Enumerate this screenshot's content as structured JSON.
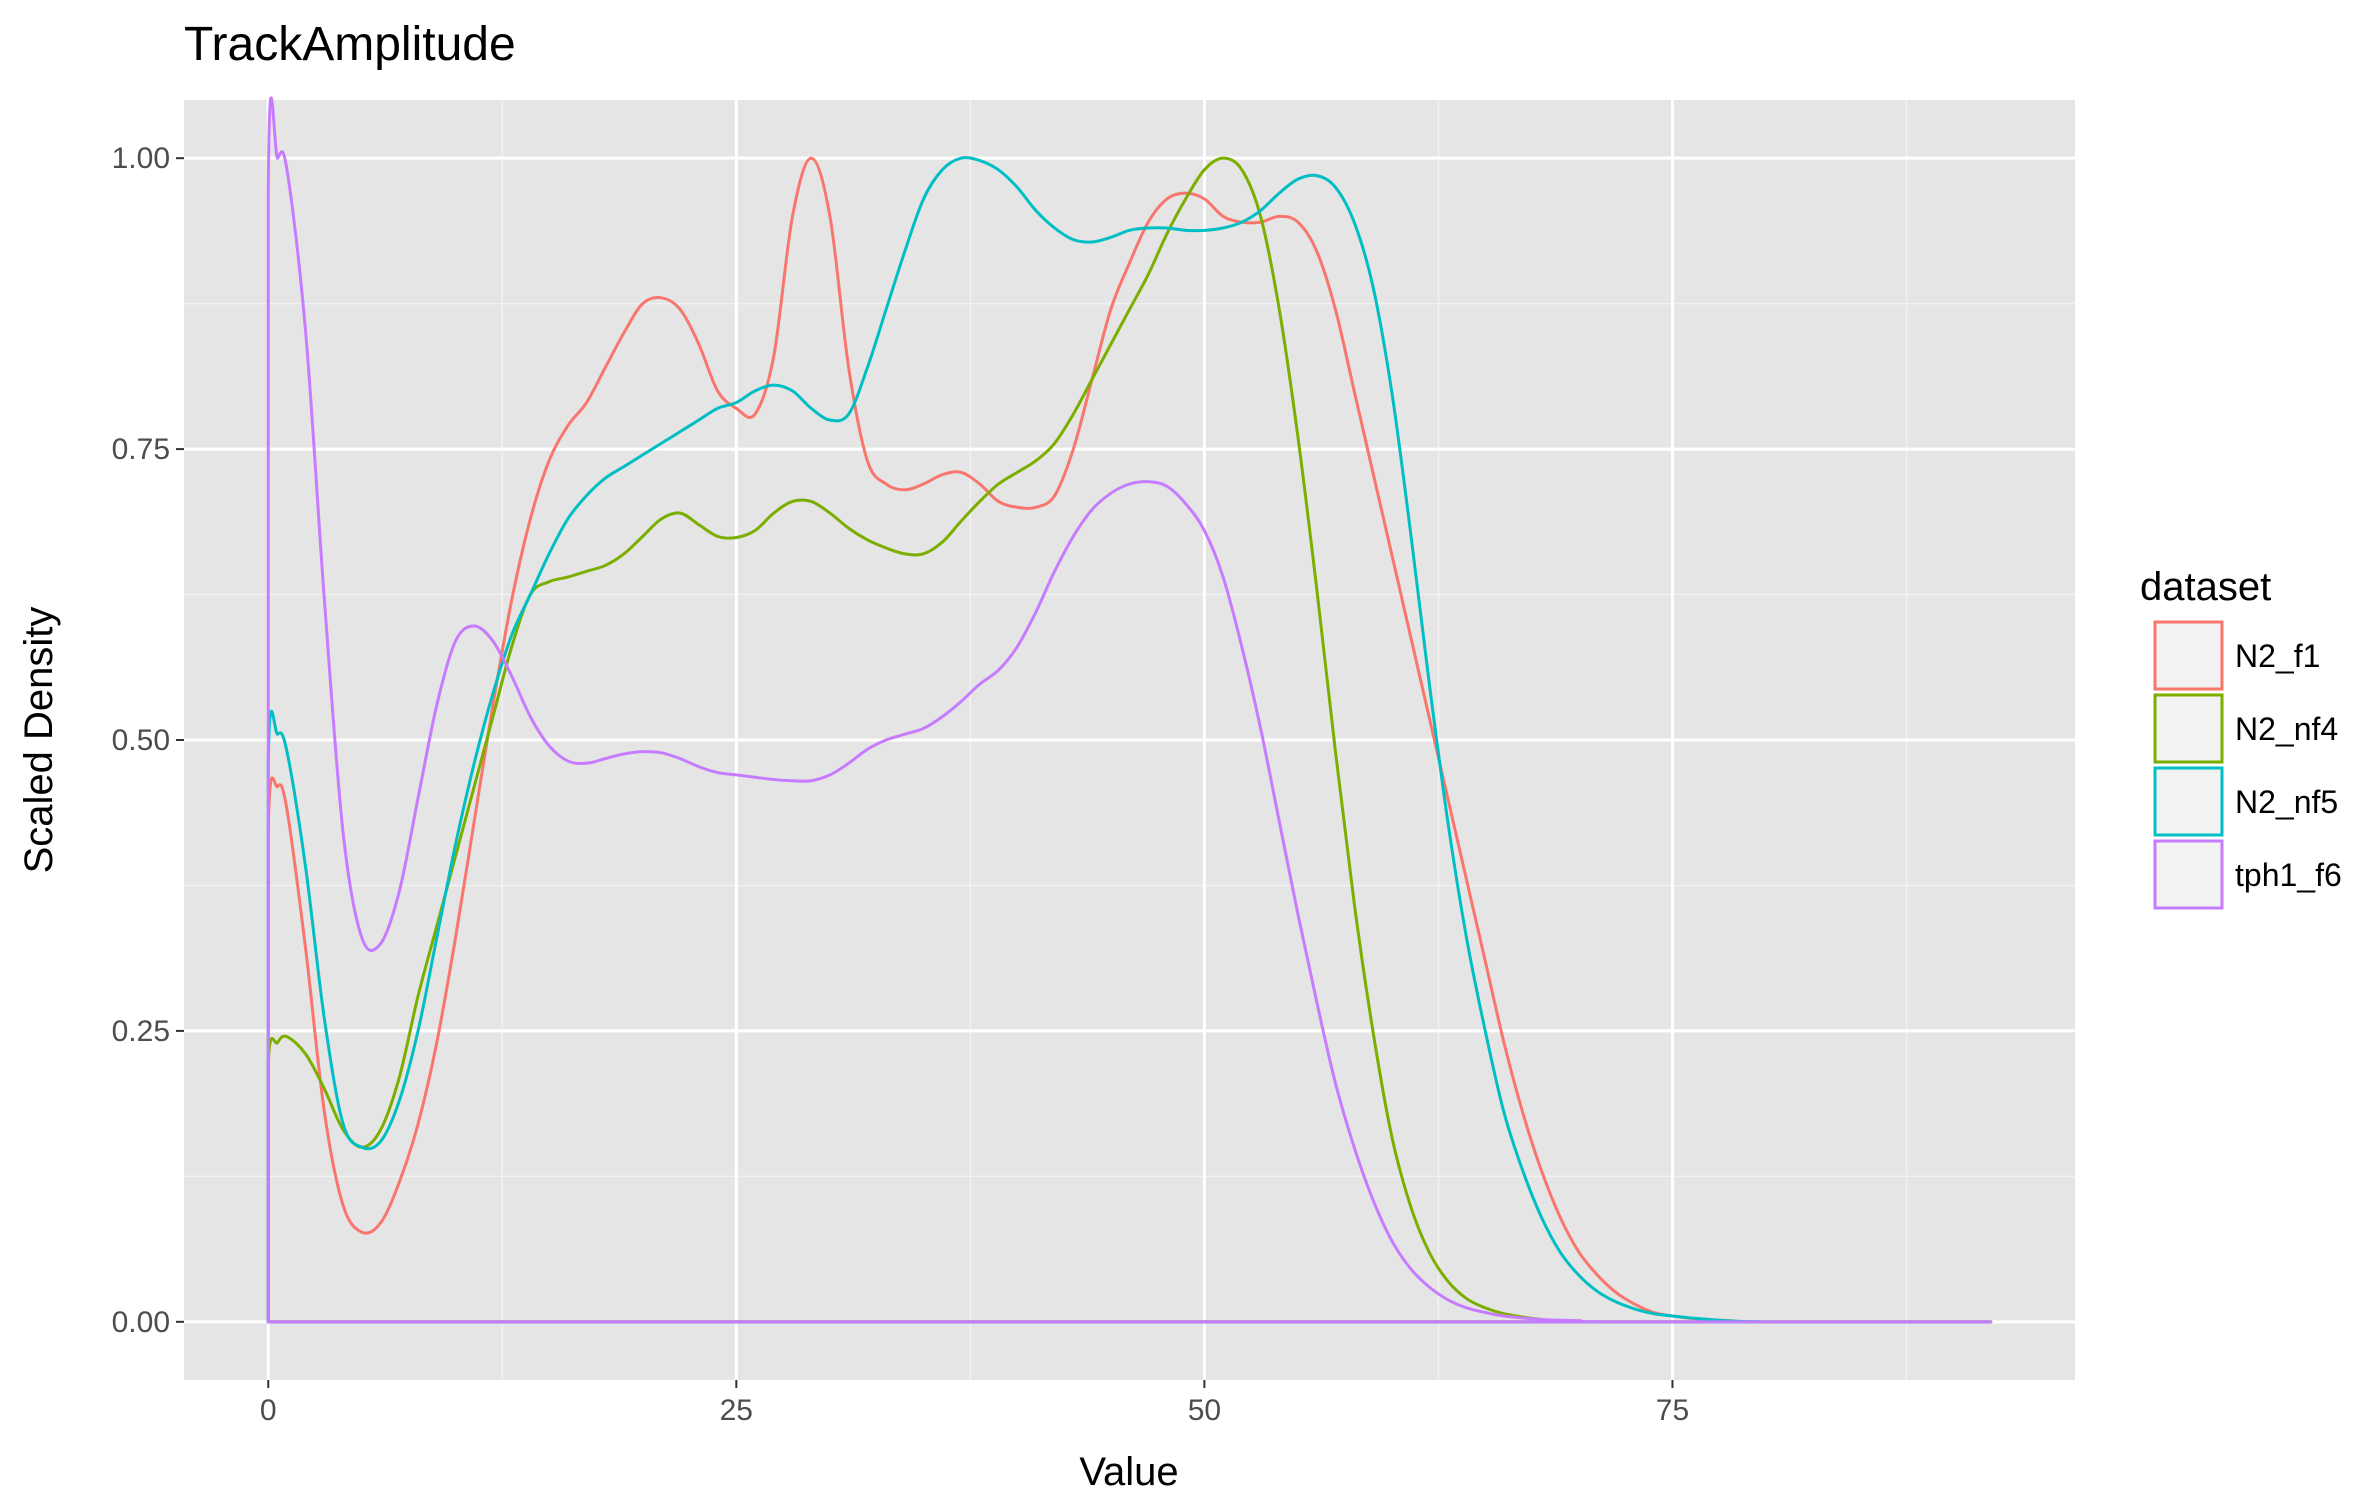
{
  "chart_data": {
    "type": "line",
    "title": "TrackAmplitude",
    "xlabel": "Value",
    "ylabel": "Scaled Density",
    "xlim": [
      -4.5,
      96.5
    ],
    "ylim": [
      -0.05,
      1.05
    ],
    "x_ticks": [
      0,
      25,
      50,
      75
    ],
    "x_tick_labels": [
      "0",
      "25",
      "50",
      "75"
    ],
    "y_ticks": [
      0,
      0.25,
      0.5,
      0.75,
      1.0
    ],
    "y_tick_labels": [
      "0.00",
      "0.25",
      "0.50",
      "0.75",
      "1.00"
    ],
    "grid": true,
    "legend": {
      "title": "dataset",
      "position": "right"
    },
    "series": [
      {
        "name": "N2_f1",
        "color": "#F8766D",
        "points": [
          [
            0,
            0
          ],
          [
            0,
            0.42
          ],
          [
            0.5,
            0.46
          ],
          [
            1,
            0.44
          ],
          [
            2,
            0.32
          ],
          [
            3,
            0.18
          ],
          [
            4,
            0.1
          ],
          [
            5,
            0.077
          ],
          [
            6,
            0.085
          ],
          [
            7,
            0.12
          ],
          [
            8,
            0.17
          ],
          [
            9,
            0.24
          ],
          [
            10,
            0.33
          ],
          [
            11,
            0.43
          ],
          [
            12,
            0.53
          ],
          [
            13,
            0.62
          ],
          [
            14,
            0.69
          ],
          [
            15,
            0.74
          ],
          [
            16,
            0.77
          ],
          [
            17,
            0.79
          ],
          [
            18,
            0.82
          ],
          [
            19,
            0.85
          ],
          [
            20,
            0.875
          ],
          [
            21,
            0.88
          ],
          [
            22,
            0.87
          ],
          [
            23,
            0.84
          ],
          [
            24,
            0.8
          ],
          [
            25,
            0.785
          ],
          [
            26,
            0.78
          ],
          [
            27,
            0.83
          ],
          [
            28,
            0.95
          ],
          [
            29,
            1.0
          ],
          [
            30,
            0.95
          ],
          [
            31,
            0.82
          ],
          [
            32,
            0.74
          ],
          [
            33,
            0.72
          ],
          [
            34,
            0.715
          ],
          [
            35,
            0.72
          ],
          [
            36,
            0.728
          ],
          [
            37,
            0.73
          ],
          [
            38,
            0.72
          ],
          [
            39,
            0.705
          ],
          [
            40,
            0.7
          ],
          [
            41,
            0.7
          ],
          [
            42,
            0.71
          ],
          [
            43,
            0.75
          ],
          [
            44,
            0.81
          ],
          [
            45,
            0.87
          ],
          [
            46,
            0.91
          ],
          [
            47,
            0.945
          ],
          [
            48,
            0.965
          ],
          [
            49,
            0.97
          ],
          [
            50,
            0.965
          ],
          [
            51,
            0.95
          ],
          [
            52,
            0.945
          ],
          [
            53,
            0.945
          ],
          [
            54,
            0.95
          ],
          [
            55,
            0.945
          ],
          [
            56,
            0.92
          ],
          [
            57,
            0.87
          ],
          [
            58,
            0.8
          ],
          [
            59,
            0.73
          ],
          [
            60,
            0.66
          ],
          [
            61,
            0.59
          ],
          [
            62,
            0.52
          ],
          [
            63,
            0.45
          ],
          [
            64,
            0.38
          ],
          [
            65,
            0.31
          ],
          [
            66,
            0.24
          ],
          [
            67,
            0.18
          ],
          [
            68,
            0.13
          ],
          [
            69,
            0.09
          ],
          [
            70,
            0.06
          ],
          [
            71,
            0.04
          ],
          [
            72,
            0.025
          ],
          [
            73,
            0.015
          ],
          [
            74,
            0.008
          ],
          [
            75,
            0.005
          ],
          [
            76,
            0.003
          ],
          [
            78,
            0.001
          ],
          [
            80,
            0.0
          ],
          [
            92,
            0.0
          ]
        ]
      },
      {
        "name": "N2_nf4",
        "color": "#7CAE00",
        "points": [
          [
            0,
            0
          ],
          [
            0,
            0.22
          ],
          [
            0.5,
            0.24
          ],
          [
            1,
            0.245
          ],
          [
            2,
            0.23
          ],
          [
            3,
            0.2
          ],
          [
            4,
            0.165
          ],
          [
            5,
            0.15
          ],
          [
            6,
            0.165
          ],
          [
            7,
            0.21
          ],
          [
            8,
            0.28
          ],
          [
            9,
            0.34
          ],
          [
            10,
            0.4
          ],
          [
            11,
            0.46
          ],
          [
            12,
            0.52
          ],
          [
            13,
            0.58
          ],
          [
            14,
            0.625
          ],
          [
            15,
            0.636
          ],
          [
            16,
            0.64
          ],
          [
            17,
            0.645
          ],
          [
            18,
            0.65
          ],
          [
            19,
            0.66
          ],
          [
            20,
            0.675
          ],
          [
            21,
            0.69
          ],
          [
            22,
            0.695
          ],
          [
            23,
            0.685
          ],
          [
            24,
            0.675
          ],
          [
            25,
            0.674
          ],
          [
            26,
            0.68
          ],
          [
            27,
            0.695
          ],
          [
            28,
            0.705
          ],
          [
            29,
            0.705
          ],
          [
            30,
            0.695
          ],
          [
            31,
            0.682
          ],
          [
            32,
            0.672
          ],
          [
            33,
            0.665
          ],
          [
            34,
            0.66
          ],
          [
            35,
            0.66
          ],
          [
            36,
            0.67
          ],
          [
            37,
            0.688
          ],
          [
            38,
            0.705
          ],
          [
            39,
            0.72
          ],
          [
            40,
            0.73
          ],
          [
            41,
            0.74
          ],
          [
            42,
            0.755
          ],
          [
            43,
            0.78
          ],
          [
            44,
            0.81
          ],
          [
            45,
            0.84
          ],
          [
            46,
            0.87
          ],
          [
            47,
            0.9
          ],
          [
            48,
            0.935
          ],
          [
            49,
            0.965
          ],
          [
            50,
            0.99
          ],
          [
            51,
            1.0
          ],
          [
            52,
            0.99
          ],
          [
            53,
            0.95
          ],
          [
            54,
            0.87
          ],
          [
            55,
            0.76
          ],
          [
            56,
            0.63
          ],
          [
            57,
            0.49
          ],
          [
            58,
            0.36
          ],
          [
            59,
            0.25
          ],
          [
            60,
            0.16
          ],
          [
            61,
            0.1
          ],
          [
            62,
            0.06
          ],
          [
            63,
            0.035
          ],
          [
            64,
            0.02
          ],
          [
            65,
            0.012
          ],
          [
            66,
            0.007
          ],
          [
            68,
            0.002
          ],
          [
            70,
            0.0
          ],
          [
            92,
            0.0
          ]
        ]
      },
      {
        "name": "N2_nf5",
        "color": "#00BFC4",
        "points": [
          [
            0,
            0
          ],
          [
            0,
            0.48
          ],
          [
            0.5,
            0.505
          ],
          [
            1,
            0.49
          ],
          [
            2,
            0.39
          ],
          [
            3,
            0.26
          ],
          [
            4,
            0.17
          ],
          [
            5,
            0.15
          ],
          [
            6,
            0.155
          ],
          [
            7,
            0.19
          ],
          [
            8,
            0.25
          ],
          [
            9,
            0.33
          ],
          [
            10,
            0.41
          ],
          [
            11,
            0.48
          ],
          [
            12,
            0.54
          ],
          [
            13,
            0.59
          ],
          [
            14,
            0.625
          ],
          [
            15,
            0.66
          ],
          [
            16,
            0.69
          ],
          [
            17,
            0.71
          ],
          [
            18,
            0.725
          ],
          [
            19,
            0.735
          ],
          [
            20,
            0.745
          ],
          [
            21,
            0.755
          ],
          [
            22,
            0.765
          ],
          [
            23,
            0.775
          ],
          [
            24,
            0.785
          ],
          [
            25,
            0.79
          ],
          [
            26,
            0.8
          ],
          [
            27,
            0.805
          ],
          [
            28,
            0.8
          ],
          [
            29,
            0.785
          ],
          [
            30,
            0.775
          ],
          [
            31,
            0.78
          ],
          [
            32,
            0.82
          ],
          [
            33,
            0.87
          ],
          [
            34,
            0.92
          ],
          [
            35,
            0.965
          ],
          [
            36,
            0.99
          ],
          [
            37,
            1.0
          ],
          [
            38,
            0.998
          ],
          [
            39,
            0.99
          ],
          [
            40,
            0.975
          ],
          [
            41,
            0.955
          ],
          [
            42,
            0.94
          ],
          [
            43,
            0.93
          ],
          [
            44,
            0.928
          ],
          [
            45,
            0.932
          ],
          [
            46,
            0.938
          ],
          [
            47,
            0.94
          ],
          [
            48,
            0.94
          ],
          [
            49,
            0.938
          ],
          [
            50,
            0.938
          ],
          [
            51,
            0.94
          ],
          [
            52,
            0.945
          ],
          [
            53,
            0.955
          ],
          [
            54,
            0.97
          ],
          [
            55,
            0.982
          ],
          [
            56,
            0.985
          ],
          [
            57,
            0.975
          ],
          [
            58,
            0.945
          ],
          [
            59,
            0.89
          ],
          [
            60,
            0.8
          ],
          [
            61,
            0.68
          ],
          [
            62,
            0.55
          ],
          [
            63,
            0.43
          ],
          [
            64,
            0.33
          ],
          [
            65,
            0.25
          ],
          [
            66,
            0.18
          ],
          [
            67,
            0.13
          ],
          [
            68,
            0.09
          ],
          [
            69,
            0.06
          ],
          [
            70,
            0.04
          ],
          [
            71,
            0.026
          ],
          [
            72,
            0.017
          ],
          [
            73,
            0.011
          ],
          [
            74,
            0.007
          ],
          [
            75,
            0.005
          ],
          [
            77,
            0.002
          ],
          [
            80,
            0.0
          ],
          [
            92,
            0.0
          ]
        ]
      },
      {
        "name": "tph1_f6",
        "color": "#C77CFF",
        "points": [
          [
            0,
            0
          ],
          [
            0,
            0.97
          ],
          [
            0.5,
            1.0
          ],
          [
            1,
            0.99
          ],
          [
            2,
            0.85
          ],
          [
            3,
            0.62
          ],
          [
            4,
            0.42
          ],
          [
            5,
            0.33
          ],
          [
            6,
            0.325
          ],
          [
            7,
            0.37
          ],
          [
            8,
            0.45
          ],
          [
            9,
            0.53
          ],
          [
            10,
            0.585
          ],
          [
            11,
            0.598
          ],
          [
            12,
            0.585
          ],
          [
            13,
            0.555
          ],
          [
            14,
            0.52
          ],
          [
            15,
            0.495
          ],
          [
            16,
            0.482
          ],
          [
            17,
            0.48
          ],
          [
            18,
            0.484
          ],
          [
            19,
            0.488
          ],
          [
            20,
            0.49
          ],
          [
            21,
            0.489
          ],
          [
            22,
            0.484
          ],
          [
            23,
            0.477
          ],
          [
            24,
            0.472
          ],
          [
            25,
            0.47
          ],
          [
            26,
            0.468
          ],
          [
            27,
            0.466
          ],
          [
            28,
            0.465
          ],
          [
            29,
            0.465
          ],
          [
            30,
            0.47
          ],
          [
            31,
            0.48
          ],
          [
            32,
            0.492
          ],
          [
            33,
            0.5
          ],
          [
            34,
            0.505
          ],
          [
            35,
            0.51
          ],
          [
            36,
            0.52
          ],
          [
            37,
            0.533
          ],
          [
            38,
            0.548
          ],
          [
            39,
            0.56
          ],
          [
            40,
            0.58
          ],
          [
            41,
            0.61
          ],
          [
            42,
            0.645
          ],
          [
            43,
            0.675
          ],
          [
            44,
            0.698
          ],
          [
            45,
            0.712
          ],
          [
            46,
            0.72
          ],
          [
            47,
            0.722
          ],
          [
            48,
            0.718
          ],
          [
            49,
            0.703
          ],
          [
            50,
            0.68
          ],
          [
            51,
            0.64
          ],
          [
            52,
            0.58
          ],
          [
            53,
            0.51
          ],
          [
            54,
            0.43
          ],
          [
            55,
            0.35
          ],
          [
            56,
            0.275
          ],
          [
            57,
            0.205
          ],
          [
            58,
            0.15
          ],
          [
            59,
            0.105
          ],
          [
            60,
            0.07
          ],
          [
            61,
            0.046
          ],
          [
            62,
            0.03
          ],
          [
            63,
            0.019
          ],
          [
            64,
            0.012
          ],
          [
            65,
            0.008
          ],
          [
            66,
            0.005
          ],
          [
            68,
            0.002
          ],
          [
            70,
            0.001
          ],
          [
            72,
            0.0
          ],
          [
            92,
            0.0
          ]
        ]
      }
    ]
  }
}
